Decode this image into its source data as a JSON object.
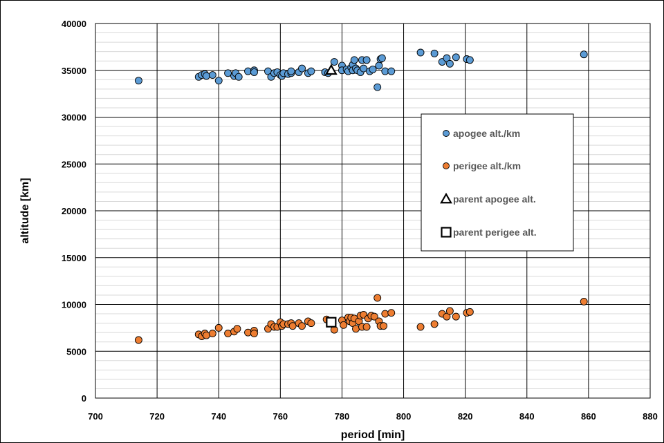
{
  "chart_data": {
    "type": "scatter",
    "title": "",
    "xlabel": "period [min]",
    "ylabel": "altitude [km]",
    "xlim": [
      700,
      880
    ],
    "ylim": [
      0,
      40000
    ],
    "x_ticks": [
      700,
      720,
      740,
      760,
      780,
      800,
      820,
      840,
      860,
      880
    ],
    "y_ticks": [
      0,
      5000,
      10000,
      15000,
      20000,
      25000,
      30000,
      35000,
      40000
    ],
    "x_tick_labels": [
      "700",
      "720",
      "740",
      "760",
      "780",
      "800",
      "820",
      "840",
      "860",
      "880"
    ],
    "y_tick_labels": [
      "0",
      "5000",
      "10000",
      "15000",
      "20000",
      "25000",
      "30000",
      "35000",
      "40000"
    ],
    "grid": true,
    "minor_grid_y_step": 1000,
    "legend_position": "right",
    "series": [
      {
        "name": "apogee alt./km",
        "marker": "circle",
        "color": "#5B9BD5",
        "points": [
          [
            714,
            33900
          ],
          [
            733.5,
            34300
          ],
          [
            734.5,
            34500
          ],
          [
            735.5,
            34600
          ],
          [
            736,
            34400
          ],
          [
            738,
            34500
          ],
          [
            740,
            33900
          ],
          [
            743,
            34700
          ],
          [
            745,
            34400
          ],
          [
            745.5,
            34700
          ],
          [
            746.5,
            34300
          ],
          [
            749.5,
            34900
          ],
          [
            751.5,
            35000
          ],
          [
            751.5,
            34800
          ],
          [
            756,
            34900
          ],
          [
            757,
            34300
          ],
          [
            758,
            34700
          ],
          [
            759,
            34800
          ],
          [
            760,
            34500
          ],
          [
            760.5,
            34400
          ],
          [
            761,
            34700
          ],
          [
            762.5,
            34600
          ],
          [
            763.5,
            34700
          ],
          [
            763.5,
            34900
          ],
          [
            766,
            34800
          ],
          [
            767,
            35200
          ],
          [
            769,
            34700
          ],
          [
            770,
            34900
          ],
          [
            774.5,
            34800
          ],
          [
            775.5,
            34700
          ],
          [
            777.5,
            35900
          ],
          [
            780,
            35500
          ],
          [
            780,
            35000
          ],
          [
            781.5,
            35100
          ],
          [
            782,
            34900
          ],
          [
            783,
            35300
          ],
          [
            783.5,
            35600
          ],
          [
            783.5,
            35000
          ],
          [
            784,
            36100
          ],
          [
            784.5,
            35200
          ],
          [
            785,
            35000
          ],
          [
            786,
            34800
          ],
          [
            786.5,
            36100
          ],
          [
            787,
            35200
          ],
          [
            788,
            36100
          ],
          [
            789,
            34900
          ],
          [
            790,
            35100
          ],
          [
            791.5,
            33200
          ],
          [
            792,
            35500
          ],
          [
            792.5,
            36200
          ],
          [
            793,
            36300
          ],
          [
            794,
            34900
          ],
          [
            796,
            34900
          ],
          [
            805.5,
            36900
          ],
          [
            810,
            36800
          ],
          [
            812.5,
            35900
          ],
          [
            814,
            36300
          ],
          [
            815,
            35700
          ],
          [
            817,
            36400
          ],
          [
            820.5,
            36200
          ],
          [
            821.5,
            36100
          ],
          [
            858.5,
            36700
          ]
        ]
      },
      {
        "name": "perigee alt./km",
        "marker": "circle",
        "color": "#ED7D31",
        "points": [
          [
            714,
            6200
          ],
          [
            733.5,
            6800
          ],
          [
            734.5,
            6600
          ],
          [
            735.5,
            6900
          ],
          [
            736,
            6700
          ],
          [
            738,
            6900
          ],
          [
            740,
            7500
          ],
          [
            743,
            6900
          ],
          [
            745,
            7100
          ],
          [
            746,
            7400
          ],
          [
            749.5,
            7000
          ],
          [
            751.5,
            7200
          ],
          [
            751.5,
            6900
          ],
          [
            756,
            7400
          ],
          [
            757,
            7900
          ],
          [
            758,
            7600
          ],
          [
            759,
            7600
          ],
          [
            760,
            8100
          ],
          [
            760.5,
            7700
          ],
          [
            761,
            7900
          ],
          [
            762.5,
            7900
          ],
          [
            763.5,
            8000
          ],
          [
            764,
            7700
          ],
          [
            766,
            8000
          ],
          [
            767,
            7700
          ],
          [
            769,
            8200
          ],
          [
            770,
            8000
          ],
          [
            775,
            8400
          ],
          [
            777.5,
            7300
          ],
          [
            780,
            8300
          ],
          [
            780.5,
            7800
          ],
          [
            782,
            8600
          ],
          [
            782.5,
            8200
          ],
          [
            783,
            8600
          ],
          [
            783.5,
            8000
          ],
          [
            784,
            8500
          ],
          [
            784.5,
            7400
          ],
          [
            785.5,
            8200
          ],
          [
            786,
            8800
          ],
          [
            786.5,
            7600
          ],
          [
            787,
            8900
          ],
          [
            788,
            7600
          ],
          [
            788.5,
            8500
          ],
          [
            789.5,
            8800
          ],
          [
            790.5,
            8700
          ],
          [
            791.5,
            10700
          ],
          [
            792,
            8200
          ],
          [
            792.5,
            7700
          ],
          [
            793.5,
            7700
          ],
          [
            794,
            9000
          ],
          [
            796,
            9100
          ],
          [
            805.5,
            7600
          ],
          [
            810,
            7900
          ],
          [
            812.5,
            9000
          ],
          [
            814,
            8700
          ],
          [
            815,
            9300
          ],
          [
            817,
            8700
          ],
          [
            820.5,
            9100
          ],
          [
            821.5,
            9200
          ],
          [
            858.5,
            10300
          ]
        ]
      },
      {
        "name": "parent apogee alt.",
        "marker": "triangle",
        "color": "#000000",
        "points": [
          [
            776.5,
            35000
          ]
        ]
      },
      {
        "name": "parent perigee alt.",
        "marker": "square",
        "color": "#000000",
        "points": [
          [
            776.5,
            8100
          ]
        ]
      }
    ]
  }
}
